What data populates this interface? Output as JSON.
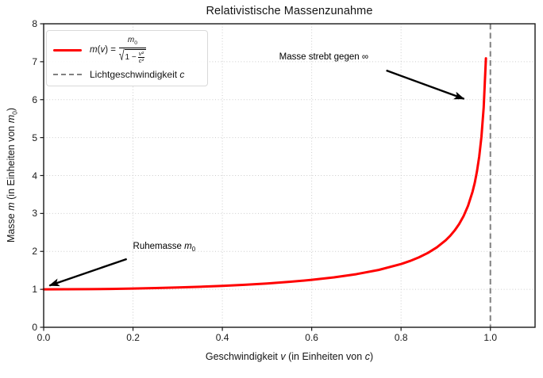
{
  "figure": {
    "title": "Relativistische Massenzunahme",
    "background": "#ffffff"
  },
  "axes": {
    "xlabel": {
      "pre": "Geschwindigkeit ",
      "var": "v",
      "mid": " (in Einheiten von ",
      "var2": "c",
      "post": ")"
    },
    "ylabel": {
      "pre": "Masse ",
      "var": "m",
      "mid": " (in Einheiten von ",
      "var2": "m",
      "sub": "0",
      "post": ")"
    }
  },
  "legend": {
    "formula": {
      "m": "m",
      "open": "(",
      "v": "v",
      "close": ") =",
      "num": "m",
      "num_sub": "0",
      "sqrt": "√",
      "rad": "1 −",
      "inner_num": "v²",
      "inner_den": "c²"
    },
    "entry2": {
      "pre": "Lichtgeschwindigkeit ",
      "var": "c"
    }
  },
  "annotations_rich": {
    "rest_mass": {
      "pre": "Ruhemasse ",
      "var": "m",
      "sub": "0"
    }
  },
  "colors": {
    "curve": "#ff0000",
    "vline": "#808080",
    "grid": "#cccccc",
    "spine": "#1a1a1a",
    "tick": "#1a1a1a",
    "arrow": "#000000"
  },
  "chart_data": {
    "type": "line",
    "title": "Relativistische Massenzunahme",
    "xlabel": "Geschwindigkeit v (in Einheiten von c)",
    "ylabel": "Masse m (in Einheiten von m0)",
    "xlim": [
      0,
      1.1
    ],
    "ylim": [
      0,
      8
    ],
    "grid": true,
    "legend_position": "upper left",
    "xticks": {
      "values": [
        0,
        0.2,
        0.4,
        0.6,
        0.8,
        1.0
      ],
      "labels": [
        "0.0",
        "0.2",
        "0.4",
        "0.6",
        "0.8",
        "1.0"
      ]
    },
    "yticks": {
      "values": [
        0,
        1,
        2,
        3,
        4,
        5,
        6,
        7,
        8
      ],
      "labels": [
        "0",
        "1",
        "2",
        "3",
        "4",
        "5",
        "6",
        "7",
        "8"
      ]
    },
    "series": [
      {
        "name": "m(v) = m0 / sqrt(1 - v^2/c^2)",
        "color": "#ff0000",
        "x": [
          0,
          0.05,
          0.1,
          0.15,
          0.2,
          0.25,
          0.3,
          0.35,
          0.4,
          0.45,
          0.5,
          0.55,
          0.6,
          0.65,
          0.7,
          0.75,
          0.8,
          0.82,
          0.84,
          0.86,
          0.88,
          0.9,
          0.91,
          0.92,
          0.93,
          0.94,
          0.95,
          0.96,
          0.965,
          0.97,
          0.975,
          0.98,
          0.985,
          0.99
        ],
        "y": [
          1.0,
          1.0013,
          1.005,
          1.0114,
          1.0206,
          1.0328,
          1.0483,
          1.0675,
          1.0911,
          1.1198,
          1.1547,
          1.1974,
          1.25,
          1.3159,
          1.4003,
          1.5119,
          1.6667,
          1.7474,
          1.843,
          1.9596,
          2.1058,
          2.2942,
          2.4119,
          2.5516,
          2.7207,
          2.9311,
          3.2026,
          3.5714,
          3.8071,
          4.1135,
          4.5004,
          5.0252,
          5.7951,
          7.0888
        ]
      }
    ],
    "vline": {
      "x": 1.0,
      "color": "#808080",
      "style": "dashed",
      "label": "Lichtgeschwindigkeit c"
    },
    "annotations": [
      {
        "text": "Masse strebt gegen ∞",
        "text_xy": [
          0.627,
          7.12
        ],
        "anchor": "center",
        "arrow_from": [
          0.767,
          6.77
        ],
        "arrow_to": [
          0.941,
          6.02
        ]
      },
      {
        "text": "Ruhemasse m0",
        "text_xy": [
          0.2,
          2.12
        ],
        "anchor": "left",
        "arrow_from": [
          0.186,
          1.8
        ],
        "arrow_to": [
          0.013,
          1.1
        ]
      }
    ]
  }
}
